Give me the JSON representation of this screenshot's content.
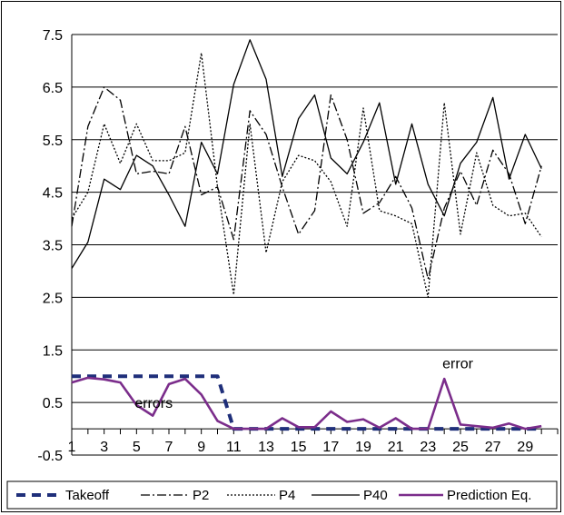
{
  "chart_data": {
    "type": "line",
    "title": "",
    "xlabel": "",
    "ylabel": "",
    "x": [
      1,
      2,
      3,
      4,
      5,
      6,
      7,
      8,
      9,
      10,
      11,
      12,
      13,
      14,
      15,
      16,
      17,
      18,
      19,
      20,
      21,
      22,
      23,
      24,
      25,
      26,
      27,
      28,
      29,
      30
    ],
    "x_tick_labels": [
      "1",
      "3",
      "5",
      "7",
      "9",
      "11",
      "13",
      "15",
      "17",
      "19",
      "21",
      "23",
      "25",
      "27",
      "29"
    ],
    "y_tick_labels": [
      "-0.5",
      "0.5",
      "1.5",
      "2.5",
      "3.5",
      "4.5",
      "5.5",
      "6.5",
      "7.5"
    ],
    "ylim": [
      -0.5,
      7.5
    ],
    "grid": "horizontal",
    "legend_position": "bottom",
    "series": [
      {
        "name": "Takeoff",
        "color": "#1f2f7a",
        "style": "dashed-thick",
        "values": [
          1.0,
          1.0,
          1.0,
          1.0,
          1.0,
          1.0,
          1.0,
          1.0,
          1.0,
          1.0,
          0.0,
          0.0,
          0.0,
          0.0,
          0.0,
          0.0,
          0.0,
          0.0,
          0.0,
          0.0,
          0.0,
          0.0,
          0.0,
          0.0,
          0.0,
          0.0,
          0.0,
          0.0,
          0.0,
          0.0
        ]
      },
      {
        "name": "P2",
        "color": "#000000",
        "style": "dashdot",
        "values": [
          3.85,
          5.75,
          6.5,
          6.25,
          4.85,
          4.9,
          4.85,
          5.75,
          4.45,
          4.6,
          3.6,
          6.05,
          5.6,
          4.6,
          3.7,
          4.15,
          6.35,
          5.5,
          4.1,
          4.3,
          4.8,
          4.2,
          2.85,
          4.2,
          4.9,
          4.25,
          5.3,
          4.85,
          3.9,
          5.0
        ]
      },
      {
        "name": "P4",
        "color": "#000000",
        "style": "dotted",
        "values": [
          4.0,
          4.5,
          5.8,
          5.05,
          5.8,
          5.1,
          5.1,
          5.25,
          7.15,
          4.6,
          2.55,
          5.8,
          3.35,
          4.7,
          5.2,
          5.1,
          4.7,
          3.85,
          6.1,
          4.15,
          4.05,
          3.9,
          2.5,
          6.2,
          3.7,
          5.25,
          4.25,
          4.05,
          4.1,
          3.65
        ]
      },
      {
        "name": "P40",
        "color": "#000000",
        "style": "solid",
        "values": [
          3.05,
          3.55,
          4.75,
          4.55,
          5.2,
          5.0,
          4.45,
          3.85,
          5.45,
          4.85,
          6.55,
          7.4,
          6.65,
          4.8,
          5.9,
          6.35,
          5.15,
          4.85,
          5.45,
          6.2,
          4.65,
          5.8,
          4.65,
          4.05,
          5.05,
          5.45,
          6.3,
          4.75,
          5.6,
          4.95
        ]
      },
      {
        "name": "Prediction Eq.",
        "color": "#7b2d8b",
        "style": "solid-thick",
        "values": [
          0.88,
          0.97,
          0.94,
          0.88,
          0.45,
          0.25,
          0.85,
          0.95,
          0.65,
          0.15,
          0.0,
          0.0,
          0.0,
          0.2,
          0.03,
          0.03,
          0.33,
          0.13,
          0.18,
          0.02,
          0.2,
          0.0,
          0.0,
          0.95,
          0.08,
          0.05,
          0.02,
          0.1,
          0.0,
          0.05
        ]
      }
    ],
    "annotations": [
      {
        "text": "errors",
        "x": 5,
        "y": 0.5
      },
      {
        "text": "error",
        "x": 24,
        "y": 1.25
      }
    ]
  }
}
